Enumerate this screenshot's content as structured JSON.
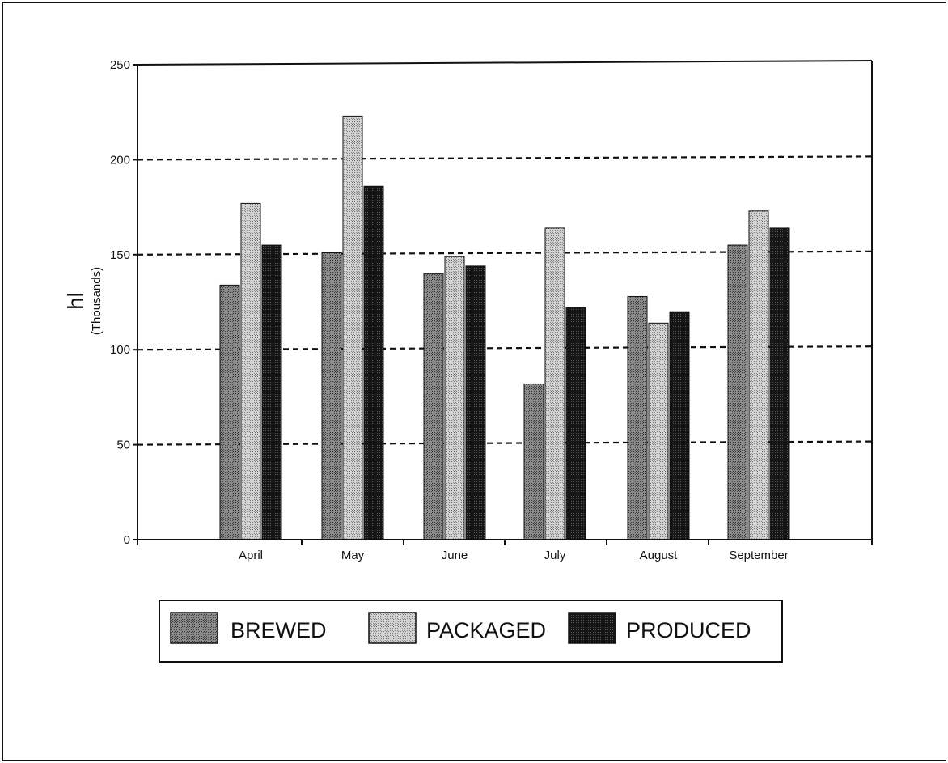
{
  "chart_data": {
    "type": "bar",
    "title": "",
    "ylabel": "hl",
    "ylabel_sub": "(Thousands)",
    "xlabel": "",
    "categories": [
      "April",
      "May",
      "June",
      "July",
      "August",
      "September"
    ],
    "series": [
      {
        "name": "BREWED",
        "values": [
          134,
          151,
          140,
          82,
          128,
          155
        ]
      },
      {
        "name": "PACKAGED",
        "values": [
          177,
          223,
          149,
          164,
          114,
          173
        ]
      },
      {
        "name": "PRODUCED",
        "values": [
          155,
          186,
          144,
          122,
          120,
          164
        ]
      }
    ],
    "ylim": [
      0,
      250
    ],
    "yticks": [
      "0",
      "50",
      "100",
      "150",
      "200",
      "250"
    ],
    "grid": "horizontal dashed",
    "legend_position": "bottom",
    "colors": {
      "BREWED": "#7a7a7a",
      "PACKAGED": "#c4c4c4",
      "PRODUCED": "#1a1a1a",
      "axis": "#111111",
      "grid": "#111111"
    }
  }
}
